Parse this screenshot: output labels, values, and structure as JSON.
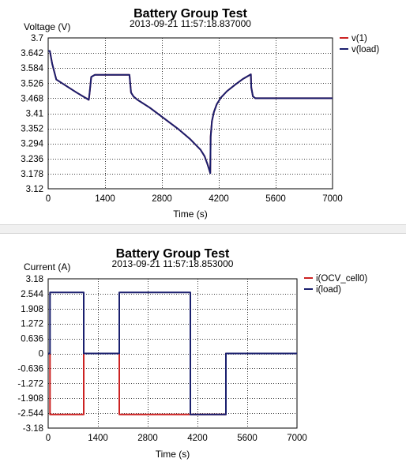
{
  "chart_data": [
    {
      "type": "line",
      "title": "Battery Group Test",
      "subtitle": "2013-09-21 11:57:18.837000",
      "xlabel": "Time (s)",
      "ylabel": "Voltage (V)",
      "xlim": [
        0,
        7000
      ],
      "ylim": [
        3.12,
        3.7
      ],
      "xticks": [
        0,
        1400,
        2800,
        4200,
        5600,
        7000
      ],
      "yticks": [
        3.12,
        3.178,
        3.236,
        3.294,
        3.352,
        3.41,
        3.468,
        3.526,
        3.584,
        3.642,
        3.7
      ],
      "ytick_labels": [
        "3.12",
        "3.178",
        "3.236",
        "3.294",
        "3.352",
        "3.41",
        "3.468",
        "3.526",
        "3.584",
        "3.642",
        "3.7"
      ],
      "grid": true,
      "legend_position": "top-right",
      "series": [
        {
          "name": "v(1)",
          "color": "#cc2222",
          "x": [
            0,
            40,
            100,
            200,
            400,
            700,
            1000,
            1020,
            1060,
            1150,
            1300,
            1600,
            1900,
            2000,
            2040,
            2100,
            2200,
            2500,
            2900,
            3200,
            3500,
            3750,
            3850,
            3920,
            3960,
            3990,
            4000,
            4030,
            4080,
            4150,
            4250,
            4400,
            4600,
            4800,
            4990,
            5000,
            5040,
            5100,
            5300,
            6000,
            7000
          ],
          "y": [
            3.65,
            3.65,
            3.6,
            3.54,
            3.52,
            3.49,
            3.462,
            3.49,
            3.55,
            3.558,
            3.558,
            3.558,
            3.558,
            3.558,
            3.49,
            3.475,
            3.462,
            3.432,
            3.385,
            3.35,
            3.31,
            3.27,
            3.245,
            3.215,
            3.195,
            3.18,
            3.32,
            3.38,
            3.415,
            3.445,
            3.47,
            3.495,
            3.52,
            3.543,
            3.56,
            3.51,
            3.475,
            3.468,
            3.468,
            3.468,
            3.468
          ]
        },
        {
          "name": "v(load)",
          "color": "#1a1f6e",
          "x": [
            0,
            40,
            100,
            200,
            400,
            700,
            1000,
            1020,
            1060,
            1150,
            1300,
            1600,
            1900,
            2000,
            2040,
            2100,
            2200,
            2500,
            2900,
            3200,
            3500,
            3750,
            3850,
            3920,
            3960,
            3990,
            4000,
            4030,
            4080,
            4150,
            4250,
            4400,
            4600,
            4800,
            4990,
            5000,
            5040,
            5100,
            5300,
            6000,
            7000
          ],
          "y": [
            3.65,
            3.65,
            3.6,
            3.54,
            3.52,
            3.49,
            3.462,
            3.49,
            3.55,
            3.558,
            3.558,
            3.558,
            3.558,
            3.558,
            3.49,
            3.475,
            3.462,
            3.432,
            3.385,
            3.35,
            3.31,
            3.27,
            3.245,
            3.215,
            3.195,
            3.18,
            3.32,
            3.38,
            3.415,
            3.445,
            3.47,
            3.495,
            3.52,
            3.543,
            3.56,
            3.51,
            3.475,
            3.468,
            3.468,
            3.468,
            3.468
          ]
        }
      ]
    },
    {
      "type": "line",
      "title": "Battery Group Test",
      "subtitle": "2013-09-21 11:57:18.853000",
      "xlabel": "Time (s)",
      "ylabel": "Current (A)",
      "xlim": [
        0,
        7000
      ],
      "ylim": [
        -3.18,
        3.18
      ],
      "xticks": [
        0,
        1400,
        2800,
        4200,
        5600,
        7000
      ],
      "yticks": [
        -3.18,
        -2.544,
        -1.908,
        -1.272,
        -0.636,
        0,
        0.636,
        1.272,
        1.908,
        2.544,
        3.18
      ],
      "ytick_labels": [
        "-3.18",
        "-2.544",
        "-1.908",
        "-1.272",
        "-0.636",
        "0",
        "0.636",
        "1.272",
        "1.908",
        "2.544",
        "3.18"
      ],
      "grid": true,
      "legend_position": "top-right",
      "series": [
        {
          "name": "i(OCV_cell0)",
          "color": "#cc2222",
          "x": [
            0,
            50,
            50,
            1000,
            1000,
            2000,
            2000,
            5000,
            5000,
            7000
          ],
          "y": [
            0,
            0,
            -2.6,
            -2.6,
            0,
            0,
            -2.6,
            -2.6,
            0,
            0
          ]
        },
        {
          "name": "i(load)",
          "color": "#1a1f6e",
          "x": [
            0,
            50,
            50,
            1000,
            1000,
            2000,
            2000,
            4000,
            4000,
            5000,
            5000,
            7000
          ],
          "y": [
            0,
            0,
            2.6,
            2.6,
            0,
            0,
            2.6,
            2.6,
            -2.6,
            -2.6,
            0,
            0
          ]
        }
      ]
    }
  ]
}
